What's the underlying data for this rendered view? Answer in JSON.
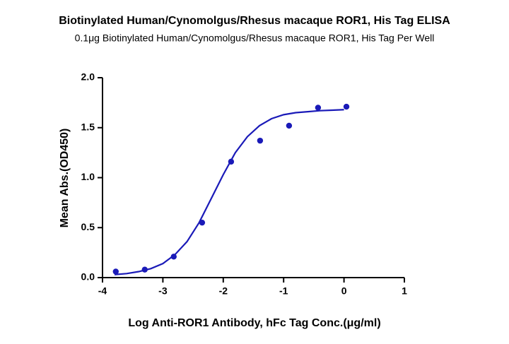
{
  "chart_data": {
    "type": "scatter",
    "title": "Biotinylated Human/Cynomolgus/Rhesus macaque ROR1, His Tag ELISA",
    "subtitle": "0.1μg Biotinylated Human/Cynomolgus/Rhesus macaque ROR1, His Tag Per Well",
    "x_label": "Log Anti-ROR1 Antibody, hFc Tag Conc.(μg/ml)",
    "y_label": "Mean Abs.(OD450)",
    "points": {
      "color": "#1a1ab8",
      "x": [
        -3.78,
        -3.3,
        -2.82,
        -2.35,
        -1.87,
        -1.39,
        -0.91,
        -0.43,
        0.04
      ],
      "values": [
        0.06,
        0.08,
        0.21,
        0.55,
        1.16,
        1.37,
        1.52,
        1.7,
        1.71
      ]
    },
    "fit": {
      "color": "#1a1ab8",
      "x": [
        -3.8,
        -3.6,
        -3.4,
        -3.2,
        -3.0,
        -2.8,
        -2.6,
        -2.4,
        -2.2,
        -2.0,
        -1.8,
        -1.6,
        -1.4,
        -1.2,
        -1.0,
        -0.8,
        -0.6,
        -0.4,
        -0.2,
        0.0
      ],
      "values": [
        0.03,
        0.04,
        0.06,
        0.09,
        0.14,
        0.23,
        0.36,
        0.55,
        0.79,
        1.03,
        1.25,
        1.41,
        1.52,
        1.59,
        1.63,
        1.65,
        1.66,
        1.67,
        1.675,
        1.68
      ]
    },
    "xlim": [
      -4,
      1
    ],
    "xticks": [
      -4,
      -3,
      -2,
      -1,
      0,
      1
    ],
    "ylim": [
      0,
      2
    ],
    "yticks": [
      {
        "value": 0,
        "label": "0.0"
      },
      0.5,
      {
        "value": 1,
        "label": "1.0"
      },
      1.5,
      {
        "value": 2,
        "label": "2.0"
      }
    ]
  }
}
